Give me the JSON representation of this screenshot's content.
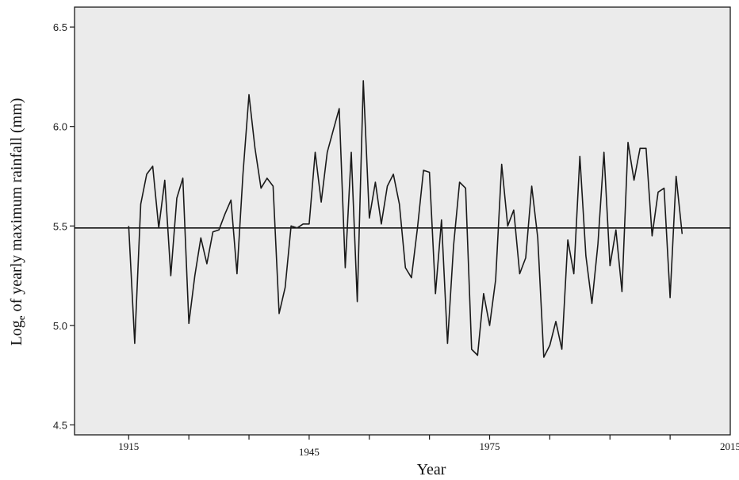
{
  "chart_data": {
    "type": "line",
    "xlabel": "Year",
    "ylabel_main": "Log",
    "ylabel_sub": "e",
    "ylabel_rest": " of yearly maximum rainfall  (mm)",
    "xlim": [
      1906,
      2015
    ],
    "ylim": [
      4.45,
      6.6
    ],
    "yticks": [
      4.5,
      5.0,
      5.5,
      6.0,
      6.5
    ],
    "ytick_labels": [
      "4.5",
      "5.0",
      "5.5",
      "6.0",
      "6.5"
    ],
    "xtick_labels": [
      {
        "year": 1915,
        "label": "1915",
        "row": "upper"
      },
      {
        "year": 1945,
        "label": "1945",
        "row": "lower"
      },
      {
        "year": 1975,
        "label": "1975",
        "row": "upper"
      },
      {
        "year": 2015,
        "label": "2015",
        "row": "upper"
      }
    ],
    "xtick_marks": [
      1915,
      1925,
      1935,
      1945,
      1955,
      1965,
      1975,
      1985,
      1995,
      2005
    ],
    "reference_line": 5.49,
    "grid": false,
    "background": "#ebebeb",
    "line_color": "#1a1a1a",
    "series": [
      {
        "x": [
          1915,
          1916,
          1917,
          1918,
          1919,
          1920,
          1921,
          1922,
          1923,
          1924,
          1925,
          1926,
          1927,
          1928,
          1929,
          1930,
          1931,
          1932,
          1933,
          1934,
          1935,
          1936,
          1937,
          1938,
          1939,
          1940,
          1941,
          1942,
          1943,
          1944,
          1945,
          1946,
          1947,
          1948,
          1949,
          1950,
          1951,
          1952,
          1953,
          1954,
          1955,
          1956,
          1957,
          1958,
          1959,
          1960,
          1961,
          1962,
          1963,
          1964,
          1965,
          1966,
          1967,
          1968,
          1969,
          1970,
          1971,
          1972,
          1973,
          1974,
          1975,
          1976,
          1977,
          1978,
          1979,
          1980,
          1981,
          1982,
          1983,
          1984,
          1985,
          1986,
          1987,
          1988,
          1989,
          1990,
          1991,
          1992,
          1993,
          1994,
          1995,
          1996,
          1997,
          1998,
          1999,
          2000,
          2001,
          2002,
          2003,
          2004,
          2005,
          2006,
          2007
        ],
        "values": [
          5.5,
          4.91,
          5.61,
          5.76,
          5.8,
          5.49,
          5.73,
          5.25,
          5.64,
          5.74,
          5.01,
          5.25,
          5.44,
          5.31,
          5.47,
          5.48,
          5.56,
          5.63,
          5.26,
          5.76,
          6.16,
          5.89,
          5.69,
          5.74,
          5.7,
          5.06,
          5.19,
          5.5,
          5.49,
          5.51,
          5.51,
          5.87,
          5.62,
          5.87,
          5.98,
          6.09,
          5.29,
          5.87,
          5.12,
          6.23,
          5.54,
          5.72,
          5.51,
          5.7,
          5.76,
          5.61,
          5.29,
          5.24,
          5.49,
          5.78,
          5.77,
          5.16,
          5.53,
          4.91,
          5.4,
          5.72,
          5.69,
          4.88,
          4.85,
          5.16,
          5.0,
          5.23,
          5.81,
          5.5,
          5.58,
          5.26,
          5.34,
          5.7,
          5.44,
          4.84,
          4.9,
          5.02,
          4.88,
          5.43,
          5.26,
          5.85,
          5.35,
          5.11,
          5.41,
          5.87,
          5.3,
          5.48,
          5.17,
          5.92,
          5.73,
          5.89,
          5.89,
          5.45,
          5.67,
          5.69,
          5.14,
          5.75,
          5.46
        ]
      }
    ]
  }
}
